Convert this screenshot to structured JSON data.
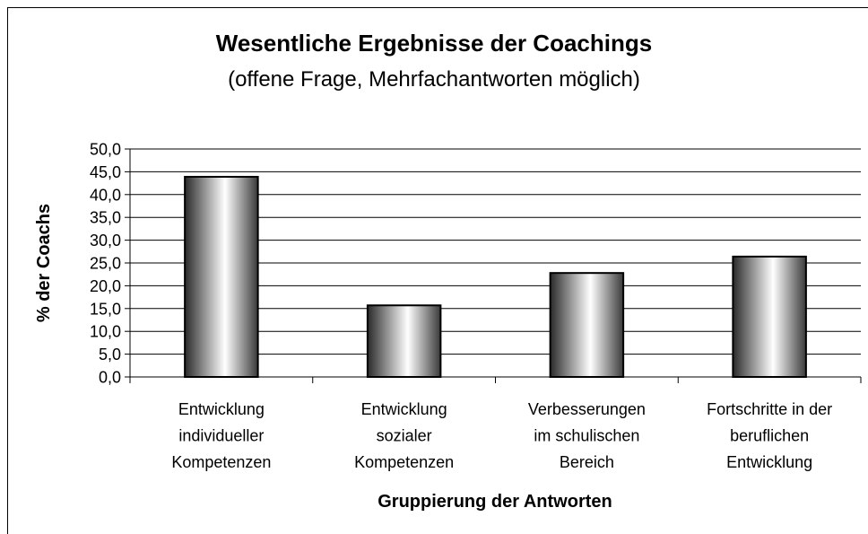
{
  "chart_data": {
    "type": "bar",
    "title": "Wesentliche Ergebnisse der Coachings",
    "subtitle": "(offene Frage, Mehrfachantworten möglich)",
    "y_label": "% der Coachs",
    "x_label": "Gruppierung der Antworten",
    "categories": [
      "Entwicklung\nindividueller\nKompetenzen",
      "Entwicklung\nsozialer\nKompetenzen",
      "Verbesserungen\nim schulischen\nBereich",
      "Fortschritte in der\nberuflichen\nEntwicklung"
    ],
    "values": [
      43.9,
      15.7,
      22.8,
      26.4
    ],
    "ylim": [
      0,
      50
    ],
    "yticks": [
      {
        "value": 0,
        "label": "0,0"
      },
      {
        "value": 5,
        "label": "5,0"
      },
      {
        "value": 10,
        "label": "10,0"
      },
      {
        "value": 15,
        "label": "15,0"
      },
      {
        "value": 20,
        "label": "20,0"
      },
      {
        "value": 25,
        "label": "25,0"
      },
      {
        "value": 30,
        "label": "30,0"
      },
      {
        "value": 35,
        "label": "35,0"
      },
      {
        "value": 40,
        "label": "40,0"
      },
      {
        "value": 45,
        "label": "45,0"
      },
      {
        "value": 50,
        "label": "50,0"
      }
    ],
    "grid": true
  }
}
